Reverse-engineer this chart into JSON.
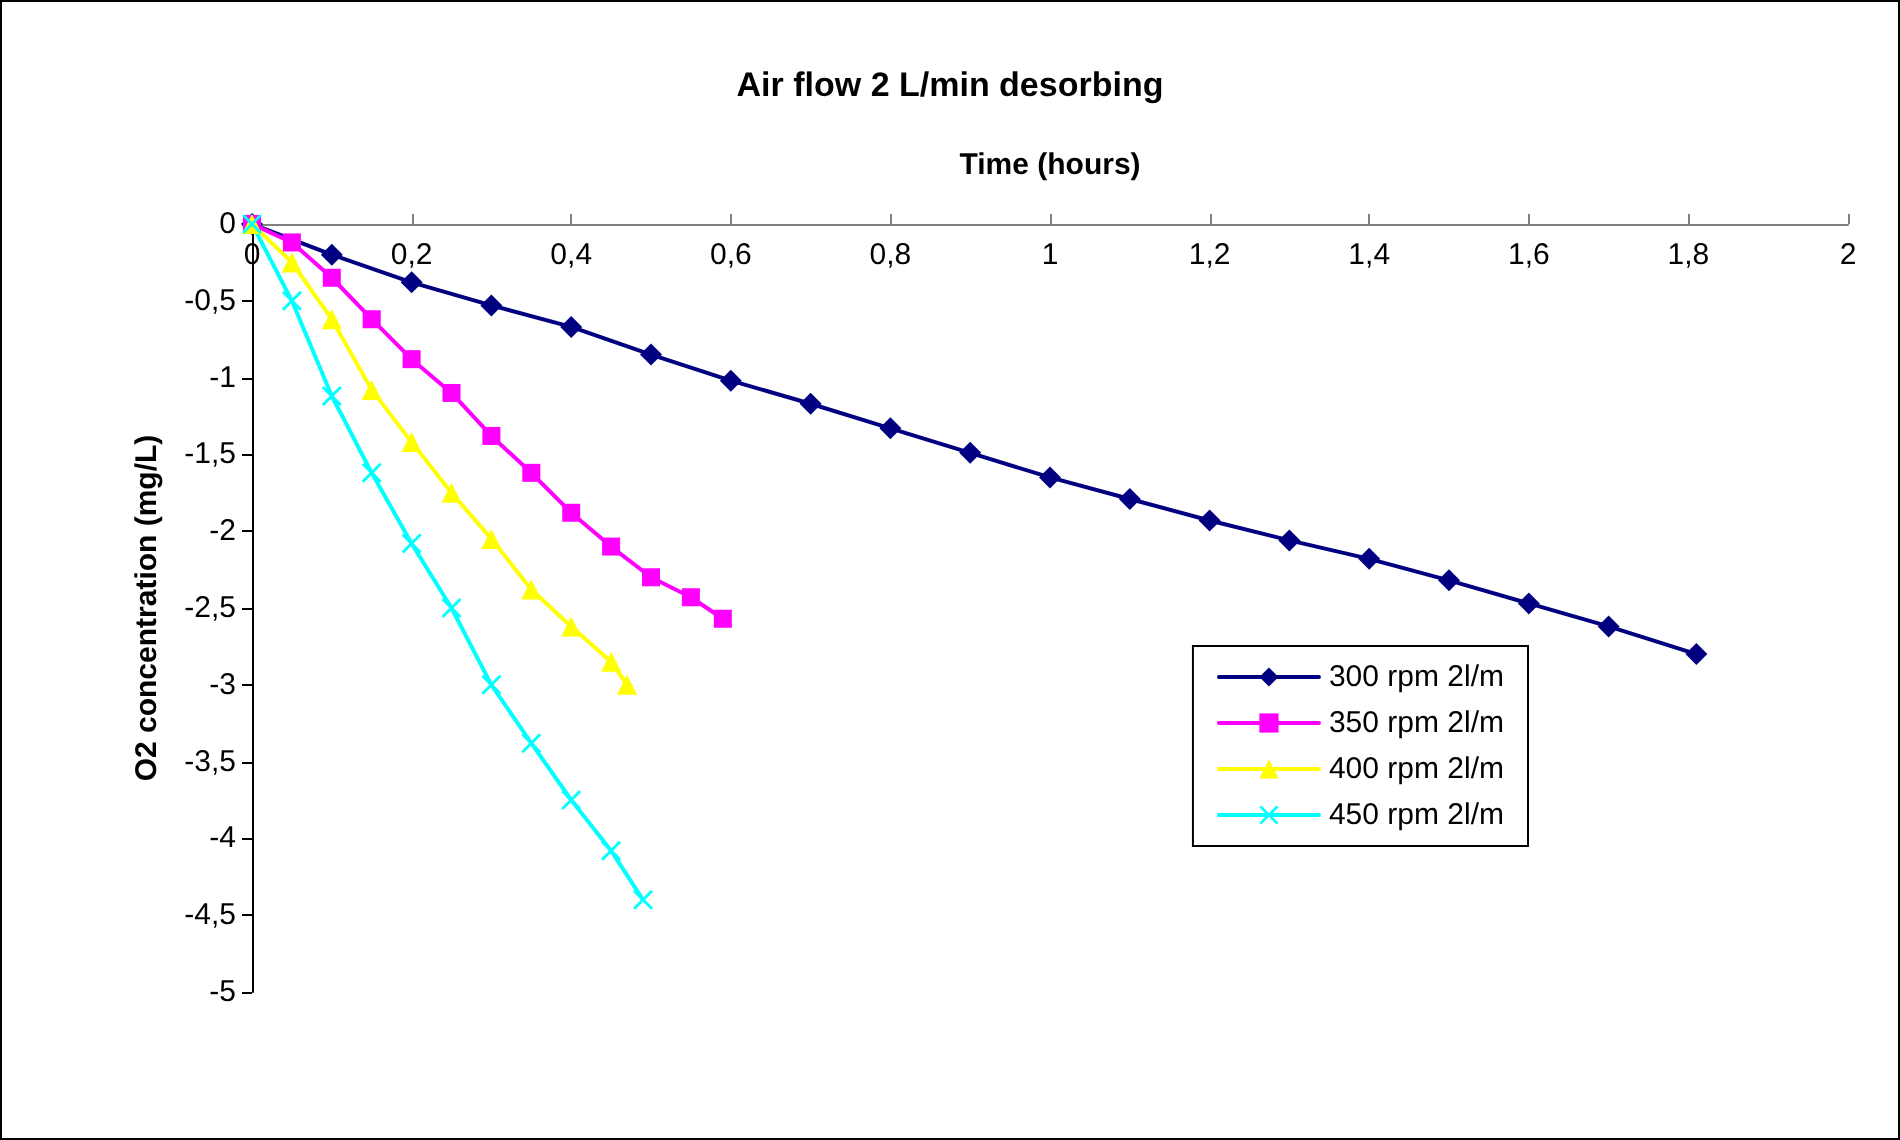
{
  "chart_data": {
    "type": "line",
    "title": "Air flow 2 L/min desorbing",
    "xlabel": "Time (hours)",
    "ylabel": "O2 concentration (mg/L)",
    "xlim": [
      0,
      2
    ],
    "ylim": [
      -5,
      0
    ],
    "xticks": [
      0,
      {
        "value": 0.2,
        "label": "0,2"
      },
      {
        "value": 0.4,
        "label": "0,4"
      },
      {
        "value": 0.6,
        "label": "0,6"
      },
      {
        "value": 0.8,
        "label": "0,8"
      },
      1,
      {
        "value": 1.2,
        "label": "1,2"
      },
      {
        "value": 1.4,
        "label": "1,4"
      },
      {
        "value": 1.6,
        "label": "1,6"
      },
      {
        "value": 1.8,
        "label": "1,8"
      },
      2
    ],
    "yticks": [
      0,
      {
        "value": -0.5,
        "label": "-0,5"
      },
      -1,
      {
        "value": -1.5,
        "label": "-1,5"
      },
      -2,
      {
        "value": -2.5,
        "label": "-2,5"
      },
      -3,
      {
        "value": -3.5,
        "label": "-3,5"
      },
      -4,
      {
        "value": -4.5,
        "label": "-4,5"
      },
      -5
    ],
    "grid": false,
    "legend": "right",
    "line_style": "solid",
    "series": [
      {
        "name": "300 rpm 2l/m",
        "color": "#000080",
        "marker": "diamond",
        "x": [
          0,
          0.1,
          0.2,
          0.3,
          0.4,
          0.5,
          0.6,
          0.7,
          0.8,
          0.9,
          1.0,
          1.1,
          1.2,
          1.3,
          1.4,
          1.5,
          1.6,
          1.7,
          1.81
        ],
        "values": [
          0,
          -0.2,
          -0.38,
          -0.53,
          -0.67,
          -0.85,
          -1.02,
          -1.17,
          -1.33,
          -1.49,
          -1.65,
          -1.79,
          -1.93,
          -2.06,
          -2.18,
          -2.32,
          -2.47,
          -2.62,
          -2.8
        ]
      },
      {
        "name": "350 rpm 2l/m",
        "color": "#ff00ff",
        "marker": "square",
        "x": [
          0,
          0.05,
          0.1,
          0.15,
          0.2,
          0.25,
          0.3,
          0.35,
          0.4,
          0.45,
          0.5,
          0.55,
          0.59
        ],
        "values": [
          0,
          -0.12,
          -0.35,
          -0.62,
          -0.88,
          -1.1,
          -1.38,
          -1.62,
          -1.88,
          -2.1,
          -2.3,
          -2.43,
          -2.57
        ]
      },
      {
        "name": "400 rpm 2l/m",
        "color": "#ffff00",
        "marker": "triangle",
        "x": [
          0,
          0.05,
          0.1,
          0.15,
          0.2,
          0.25,
          0.3,
          0.35,
          0.4,
          0.45,
          0.47
        ],
        "values": [
          0,
          -0.25,
          -0.62,
          -1.08,
          -1.42,
          -1.75,
          -2.05,
          -2.38,
          -2.62,
          -2.85,
          -3.0
        ]
      },
      {
        "name": "450 rpm 2l/m",
        "color": "#00ffff",
        "marker": "cross",
        "x": [
          0,
          0.05,
          0.1,
          0.15,
          0.2,
          0.25,
          0.3,
          0.35,
          0.4,
          0.45,
          0.49
        ],
        "values": [
          0,
          -0.5,
          -1.12,
          -1.62,
          -2.08,
          -2.5,
          -3.0,
          -3.38,
          -3.75,
          -4.08,
          -4.4
        ]
      }
    ]
  }
}
